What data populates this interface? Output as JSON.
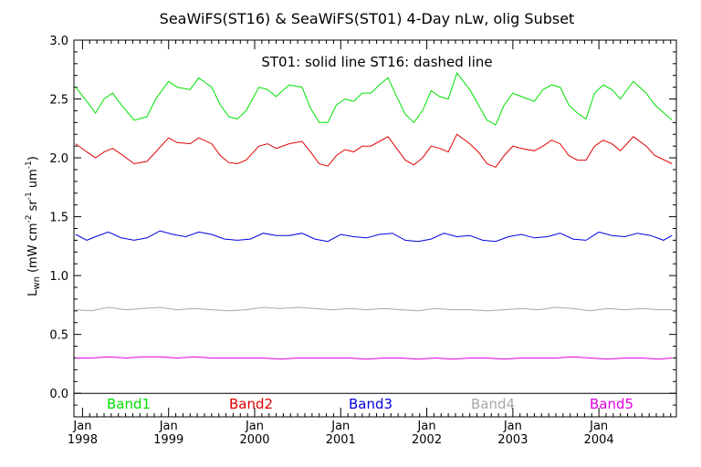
{
  "chart_data": {
    "type": "line",
    "title": "SeaWiFS(ST16) & SeaWiFS(ST01) 4-Day nLw, olig Subset",
    "ylabel_main": "L",
    "ylabel_sub": "wn",
    "ylabel_units": "(mW cm",
    "ylabel_units_exp1": "-2",
    "ylabel_units_mid": " sr",
    "ylabel_units_exp2": "-1",
    "ylabel_units_um": " um",
    "ylabel_units_exp3": "-1",
    "ylabel_units_close": ")",
    "annotation": "ST01: solid line   ST16: dashed line",
    "xlim": [
      1997.9,
      2004.9
    ],
    "ylim": [
      -0.2,
      3.0
    ],
    "yticks": [
      "0.0",
      "0.5",
      "1.0",
      "1.5",
      "2.0",
      "2.5",
      "3.0"
    ],
    "ytick_values": [
      0.0,
      0.5,
      1.0,
      1.5,
      2.0,
      2.5,
      3.0
    ],
    "xticks": [
      {
        "month": "Jan",
        "year": "1998",
        "x": 1998.0
      },
      {
        "month": "Jan",
        "year": "1999",
        "x": 1999.0
      },
      {
        "month": "Jan",
        "year": "2000",
        "x": 2000.0
      },
      {
        "month": "Jan",
        "year": "2001",
        "x": 2001.0
      },
      {
        "month": "Jan",
        "year": "2002",
        "x": 2002.0
      },
      {
        "month": "Jan",
        "year": "2003",
        "x": 2003.0
      },
      {
        "month": "Jan",
        "year": "2004",
        "x": 2004.0
      }
    ],
    "legend_placement": "bottom inside plot",
    "series": [
      {
        "name": "Band1",
        "color": "#00e000",
        "x": [
          1997.92,
          1998.05,
          1998.15,
          1998.25,
          1998.35,
          1998.45,
          1998.6,
          1998.75,
          1998.85,
          1999.0,
          1999.1,
          1999.25,
          1999.35,
          1999.5,
          1999.6,
          1999.7,
          1999.8,
          1999.9,
          2000.05,
          2000.15,
          2000.25,
          2000.4,
          2000.55,
          2000.65,
          2000.75,
          2000.85,
          2000.95,
          2001.05,
          2001.15,
          2001.25,
          2001.35,
          2001.45,
          2001.55,
          2001.65,
          2001.75,
          2001.85,
          2001.95,
          2002.05,
          2002.15,
          2002.25,
          2002.35,
          2002.5,
          2002.6,
          2002.7,
          2002.8,
          2002.9,
          2003.0,
          2003.1,
          2003.25,
          2003.35,
          2003.45,
          2003.55,
          2003.65,
          2003.75,
          2003.85,
          2003.95,
          2004.05,
          2004.15,
          2004.25,
          2004.4,
          2004.55,
          2004.65,
          2004.85
        ],
        "y": [
          2.6,
          2.48,
          2.38,
          2.5,
          2.55,
          2.45,
          2.32,
          2.35,
          2.5,
          2.65,
          2.6,
          2.58,
          2.68,
          2.6,
          2.45,
          2.35,
          2.33,
          2.4,
          2.6,
          2.58,
          2.52,
          2.62,
          2.6,
          2.42,
          2.3,
          2.3,
          2.45,
          2.5,
          2.48,
          2.55,
          2.55,
          2.62,
          2.68,
          2.52,
          2.37,
          2.3,
          2.4,
          2.57,
          2.52,
          2.5,
          2.72,
          2.58,
          2.45,
          2.32,
          2.28,
          2.45,
          2.55,
          2.52,
          2.48,
          2.58,
          2.62,
          2.6,
          2.45,
          2.38,
          2.33,
          2.55,
          2.62,
          2.58,
          2.5,
          2.65,
          2.55,
          2.45,
          2.32
        ]
      },
      {
        "name": "Band2",
        "color": "#e00000",
        "x": [
          1997.92,
          1998.05,
          1998.15,
          1998.25,
          1998.35,
          1998.45,
          1998.6,
          1998.75,
          1998.85,
          1999.0,
          1999.1,
          1999.25,
          1999.35,
          1999.5,
          1999.6,
          1999.7,
          1999.8,
          1999.9,
          2000.05,
          2000.15,
          2000.25,
          2000.4,
          2000.55,
          2000.65,
          2000.75,
          2000.85,
          2000.95,
          2001.05,
          2001.15,
          2001.25,
          2001.35,
          2001.45,
          2001.55,
          2001.65,
          2001.75,
          2001.85,
          2001.95,
          2002.05,
          2002.15,
          2002.25,
          2002.35,
          2002.5,
          2002.6,
          2002.7,
          2002.8,
          2002.9,
          2003.0,
          2003.1,
          2003.25,
          2003.35,
          2003.45,
          2003.55,
          2003.65,
          2003.75,
          2003.85,
          2003.95,
          2004.05,
          2004.15,
          2004.25,
          2004.4,
          2004.55,
          2004.65,
          2004.85
        ],
        "y": [
          2.12,
          2.05,
          2.0,
          2.05,
          2.08,
          2.03,
          1.95,
          1.97,
          2.05,
          2.17,
          2.13,
          2.12,
          2.17,
          2.12,
          2.02,
          1.96,
          1.95,
          1.98,
          2.1,
          2.12,
          2.08,
          2.12,
          2.14,
          2.05,
          1.95,
          1.93,
          2.02,
          2.07,
          2.05,
          2.1,
          2.1,
          2.14,
          2.18,
          2.08,
          1.98,
          1.94,
          2.0,
          2.1,
          2.08,
          2.05,
          2.2,
          2.12,
          2.05,
          1.95,
          1.92,
          2.02,
          2.1,
          2.08,
          2.06,
          2.1,
          2.15,
          2.12,
          2.02,
          1.98,
          1.98,
          2.1,
          2.15,
          2.12,
          2.06,
          2.18,
          2.1,
          2.02,
          1.95
        ]
      },
      {
        "name": "Band3",
        "color": "#0000e0",
        "x": [
          1997.92,
          1998.05,
          1998.15,
          1998.3,
          1998.45,
          1998.6,
          1998.75,
          1998.9,
          1999.05,
          1999.2,
          1999.35,
          1999.5,
          1999.65,
          1999.8,
          1999.95,
          2000.1,
          2000.25,
          2000.4,
          2000.55,
          2000.7,
          2000.85,
          2001.0,
          2001.15,
          2001.3,
          2001.45,
          2001.6,
          2001.75,
          2001.9,
          2002.05,
          2002.2,
          2002.35,
          2002.5,
          2002.65,
          2002.8,
          2002.95,
          2003.1,
          2003.25,
          2003.4,
          2003.55,
          2003.7,
          2003.85,
          2004.0,
          2004.15,
          2004.3,
          2004.45,
          2004.6,
          2004.75,
          2004.85
        ],
        "y": [
          1.35,
          1.3,
          1.33,
          1.37,
          1.32,
          1.3,
          1.32,
          1.38,
          1.35,
          1.33,
          1.37,
          1.35,
          1.31,
          1.3,
          1.31,
          1.36,
          1.34,
          1.34,
          1.36,
          1.31,
          1.29,
          1.35,
          1.33,
          1.32,
          1.35,
          1.36,
          1.3,
          1.29,
          1.31,
          1.36,
          1.33,
          1.34,
          1.3,
          1.29,
          1.33,
          1.35,
          1.32,
          1.33,
          1.36,
          1.31,
          1.3,
          1.37,
          1.34,
          1.33,
          1.36,
          1.34,
          1.3,
          1.34
        ]
      },
      {
        "name": "Band4",
        "color": "#a8a8a8",
        "x": [
          1997.92,
          1998.1,
          1998.3,
          1998.5,
          1998.7,
          1998.9,
          1999.1,
          1999.3,
          1999.5,
          1999.7,
          1999.9,
          2000.1,
          2000.3,
          2000.5,
          2000.7,
          2000.9,
          2001.1,
          2001.3,
          2001.5,
          2001.7,
          2001.9,
          2002.1,
          2002.3,
          2002.5,
          2002.7,
          2002.9,
          2003.1,
          2003.3,
          2003.5,
          2003.7,
          2003.9,
          2004.1,
          2004.3,
          2004.5,
          2004.7,
          2004.85
        ],
        "y": [
          0.71,
          0.7,
          0.73,
          0.71,
          0.72,
          0.73,
          0.71,
          0.72,
          0.71,
          0.7,
          0.71,
          0.73,
          0.72,
          0.73,
          0.72,
          0.71,
          0.72,
          0.71,
          0.72,
          0.71,
          0.7,
          0.72,
          0.71,
          0.71,
          0.7,
          0.71,
          0.72,
          0.71,
          0.73,
          0.72,
          0.7,
          0.72,
          0.71,
          0.72,
          0.71,
          0.71
        ]
      },
      {
        "name": "Band5",
        "color": "#e000e0",
        "x": [
          1997.92,
          1998.1,
          1998.3,
          1998.5,
          1998.7,
          1998.9,
          1999.1,
          1999.3,
          1999.5,
          1999.7,
          1999.9,
          2000.1,
          2000.3,
          2000.5,
          2000.7,
          2000.9,
          2001.1,
          2001.3,
          2001.5,
          2001.7,
          2001.9,
          2002.1,
          2002.3,
          2002.5,
          2002.7,
          2002.9,
          2003.1,
          2003.3,
          2003.5,
          2003.7,
          2003.9,
          2004.1,
          2004.3,
          2004.5,
          2004.7,
          2004.85
        ],
        "y": [
          0.3,
          0.3,
          0.31,
          0.3,
          0.31,
          0.31,
          0.3,
          0.31,
          0.3,
          0.3,
          0.3,
          0.3,
          0.29,
          0.3,
          0.3,
          0.3,
          0.3,
          0.29,
          0.3,
          0.3,
          0.29,
          0.3,
          0.29,
          0.3,
          0.3,
          0.29,
          0.3,
          0.3,
          0.3,
          0.31,
          0.3,
          0.29,
          0.3,
          0.3,
          0.29,
          0.3
        ]
      }
    ]
  }
}
